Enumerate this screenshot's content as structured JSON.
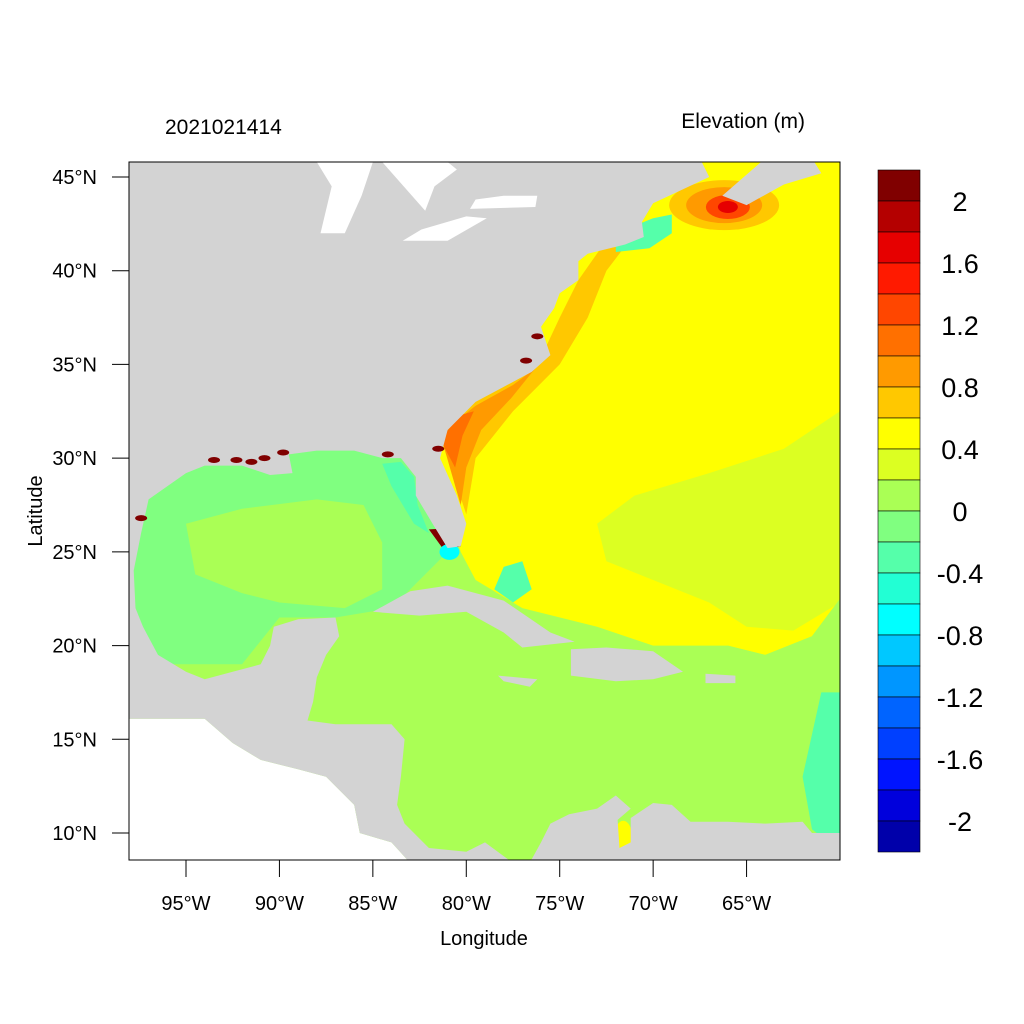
{
  "chart_data": {
    "type": "heatmap",
    "title_left": "2021021414",
    "title_right": "Elevation (m)",
    "xlabel": "Longitude",
    "ylabel": "Latitude",
    "xlim": [
      -98.05,
      -60.0
    ],
    "ylim": [
      8.56,
      45.8
    ],
    "x_ticks": [
      {
        "value": -95,
        "label": "95°W"
      },
      {
        "value": -90,
        "label": "90°W"
      },
      {
        "value": -85,
        "label": "85°W"
      },
      {
        "value": -80,
        "label": "80°W"
      },
      {
        "value": -75,
        "label": "75°W"
      },
      {
        "value": -70,
        "label": "70°W"
      },
      {
        "value": -65,
        "label": "65°W"
      }
    ],
    "y_ticks": [
      {
        "value": 45,
        "label": "45°N"
      },
      {
        "value": 40,
        "label": "40°N"
      },
      {
        "value": 35,
        "label": "35°N"
      },
      {
        "value": 30,
        "label": "30°N"
      },
      {
        "value": 25,
        "label": "25°N"
      },
      {
        "value": 20,
        "label": "20°N"
      },
      {
        "value": 15,
        "label": "15°N"
      },
      {
        "value": 10,
        "label": "10°N"
      }
    ],
    "colorbar": {
      "levels": [
        2.2,
        2.0,
        1.8,
        1.6,
        1.4,
        1.2,
        1.0,
        0.8,
        0.6,
        0.4,
        0.2,
        0.0,
        -0.2,
        -0.4,
        -0.6,
        -0.8,
        -1.0,
        -1.2,
        -1.4,
        -1.6,
        -1.8,
        -2.0
      ],
      "colors": [
        "#800000",
        "#b40000",
        "#e60000",
        "#ff1a00",
        "#ff4600",
        "#ff7000",
        "#ff9a00",
        "#ffc800",
        "#ffff00",
        "#dcff22",
        "#aaff55",
        "#80ff80",
        "#55ffaa",
        "#22ffd4",
        "#00ffff",
        "#00c8ff",
        "#0096ff",
        "#0064ff",
        "#0040ff",
        "#0014ff",
        "#0000dc",
        "#0000aa"
      ],
      "labels": [
        {
          "boundary": 1,
          "label": "2"
        },
        {
          "boundary": 3,
          "label": "1.6"
        },
        {
          "boundary": 5,
          "label": "1.2"
        },
        {
          "boundary": 7,
          "label": "0.8"
        },
        {
          "boundary": 9,
          "label": "0.4"
        },
        {
          "boundary": 11,
          "label": "0"
        },
        {
          "boundary": 13,
          "label": "-0.4"
        },
        {
          "boundary": 15,
          "label": "-0.8"
        },
        {
          "boundary": 17,
          "label": "-1.2"
        },
        {
          "boundary": 19,
          "label": "-1.6"
        },
        {
          "boundary": 21,
          "label": "-2"
        }
      ]
    },
    "land_color": "#d3d3d3",
    "nodata_color": "#ffffff"
  }
}
